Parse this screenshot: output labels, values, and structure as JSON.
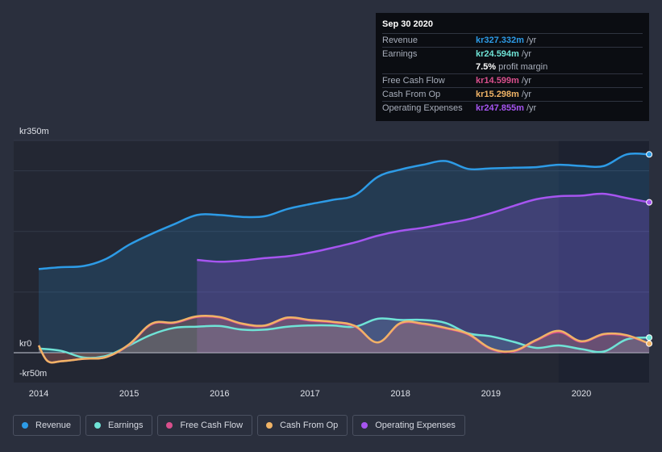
{
  "tooltip": {
    "date": "Sep 30 2020",
    "rows": [
      {
        "label": "Revenue",
        "value": "kr327.332m",
        "unit": "/yr",
        "color": "#2d9be6"
      },
      {
        "label": "Earnings",
        "value": "kr24.594m",
        "unit": "/yr",
        "color": "#6fe3d6"
      },
      {
        "label": "",
        "value": "7.5%",
        "unit": "profit margin",
        "color": "#ffffff"
      },
      {
        "label": "Free Cash Flow",
        "value": "kr14.599m",
        "unit": "/yr",
        "color": "#d94f8c"
      },
      {
        "label": "Cash From Op",
        "value": "kr15.298m",
        "unit": "/yr",
        "color": "#f0b366"
      },
      {
        "label": "Operating Expenses",
        "value": "kr247.855m",
        "unit": "/yr",
        "color": "#a655f0"
      }
    ]
  },
  "legend": [
    {
      "label": "Revenue",
      "color": "#2d9be6"
    },
    {
      "label": "Earnings",
      "color": "#6fe3d6"
    },
    {
      "label": "Free Cash Flow",
      "color": "#d94f8c"
    },
    {
      "label": "Cash From Op",
      "color": "#f0b366"
    },
    {
      "label": "Operating Expenses",
      "color": "#a655f0"
    }
  ],
  "chart_data": {
    "type": "area",
    "title": "",
    "xlabel": "",
    "ylabel": "",
    "x_range": [
      2014.0,
      2020.75
    ],
    "ylim": [
      -50,
      350
    ],
    "y_tick_labels": [
      {
        "value": 350,
        "label": "kr350m"
      },
      {
        "value": 0,
        "label": "kr0"
      },
      {
        "value": -50,
        "label": "-kr50m"
      }
    ],
    "x_tick_labels": [
      {
        "value": 2014,
        "label": "2014"
      },
      {
        "value": 2015,
        "label": "2015"
      },
      {
        "value": 2016,
        "label": "2016"
      },
      {
        "value": 2017,
        "label": "2017"
      },
      {
        "value": 2018,
        "label": "2018"
      },
      {
        "value": 2019,
        "label": "2019"
      },
      {
        "value": 2020,
        "label": "2020"
      }
    ],
    "highlight_from": 2019.75,
    "series": [
      {
        "name": "Revenue",
        "color": "#2d9be6",
        "fill": true,
        "end_marker": true,
        "x": [
          2014.0,
          2014.25,
          2014.5,
          2014.75,
          2015.0,
          2015.25,
          2015.5,
          2015.75,
          2016.0,
          2016.25,
          2016.5,
          2016.75,
          2017.0,
          2017.25,
          2017.5,
          2017.75,
          2018.0,
          2018.25,
          2018.5,
          2018.75,
          2019.0,
          2019.25,
          2019.5,
          2019.75,
          2020.0,
          2020.25,
          2020.5,
          2020.75
        ],
        "values": [
          138,
          141,
          143,
          155,
          178,
          196,
          212,
          227,
          227,
          224,
          225,
          237,
          245,
          252,
          260,
          290,
          302,
          310,
          316,
          303,
          304,
          305,
          306,
          310,
          308,
          308,
          327,
          327
        ]
      },
      {
        "name": "Operating Expenses",
        "color": "#a655f0",
        "fill": true,
        "end_marker": true,
        "x": [
          2015.75,
          2016.0,
          2016.25,
          2016.5,
          2016.75,
          2017.0,
          2017.25,
          2017.5,
          2017.75,
          2018.0,
          2018.25,
          2018.5,
          2018.75,
          2019.0,
          2019.25,
          2019.5,
          2019.75,
          2020.0,
          2020.25,
          2020.5,
          2020.75
        ],
        "values": [
          153,
          150,
          152,
          156,
          159,
          165,
          173,
          182,
          193,
          201,
          206,
          213,
          220,
          230,
          242,
          253,
          258,
          259,
          262,
          255,
          248
        ]
      },
      {
        "name": "Earnings",
        "color": "#6fe3d6",
        "fill": true,
        "end_marker": true,
        "x": [
          2014.0,
          2014.25,
          2014.5,
          2014.75,
          2015.0,
          2015.25,
          2015.5,
          2015.75,
          2016.0,
          2016.25,
          2016.5,
          2016.75,
          2017.0,
          2017.25,
          2017.5,
          2017.75,
          2018.0,
          2018.25,
          2018.5,
          2018.75,
          2019.0,
          2019.25,
          2019.5,
          2019.75,
          2020.0,
          2020.25,
          2020.5,
          2020.75
        ],
        "values": [
          7,
          3,
          -8,
          -5,
          12,
          30,
          41,
          43,
          44,
          38,
          38,
          43,
          45,
          45,
          43,
          56,
          54,
          54,
          49,
          32,
          27,
          18,
          8,
          12,
          6,
          2,
          22,
          25
        ]
      },
      {
        "name": "Free Cash Flow",
        "color": "#d94f8c",
        "fill": true,
        "end_marker": false,
        "x": [
          2014.0,
          2014.1,
          2014.25,
          2014.5,
          2014.75,
          2015.0,
          2015.25,
          2015.5,
          2015.75,
          2016.0,
          2016.25,
          2016.5,
          2016.75,
          2017.0,
          2017.25,
          2017.5,
          2017.75,
          2018.0,
          2018.25,
          2018.5,
          2018.75,
          2019.0,
          2019.25,
          2019.5,
          2019.75,
          2020.0,
          2020.25,
          2020.5,
          2020.75
        ],
        "values": [
          12,
          -14,
          -14,
          -10,
          -7,
          13,
          47,
          49,
          59,
          58,
          47,
          44,
          57,
          53,
          50,
          43,
          17,
          48,
          47,
          40,
          30,
          6,
          2,
          20,
          34,
          18,
          30,
          28,
          15
        ]
      },
      {
        "name": "Cash From Op",
        "color": "#f0b366",
        "fill": true,
        "end_marker": true,
        "x": [
          2014.0,
          2014.1,
          2014.25,
          2014.5,
          2014.75,
          2015.0,
          2015.25,
          2015.5,
          2015.75,
          2016.0,
          2016.25,
          2016.5,
          2016.75,
          2017.0,
          2017.25,
          2017.5,
          2017.75,
          2018.0,
          2018.25,
          2018.5,
          2018.75,
          2019.0,
          2019.25,
          2019.5,
          2019.75,
          2020.0,
          2020.25,
          2020.5,
          2020.75
        ],
        "values": [
          12,
          -14,
          -14,
          -10,
          -7,
          14,
          48,
          50,
          60,
          59,
          48,
          45,
          58,
          54,
          51,
          44,
          17,
          49,
          48,
          41,
          31,
          7,
          3,
          21,
          36,
          19,
          31,
          29,
          15
        ]
      }
    ]
  }
}
